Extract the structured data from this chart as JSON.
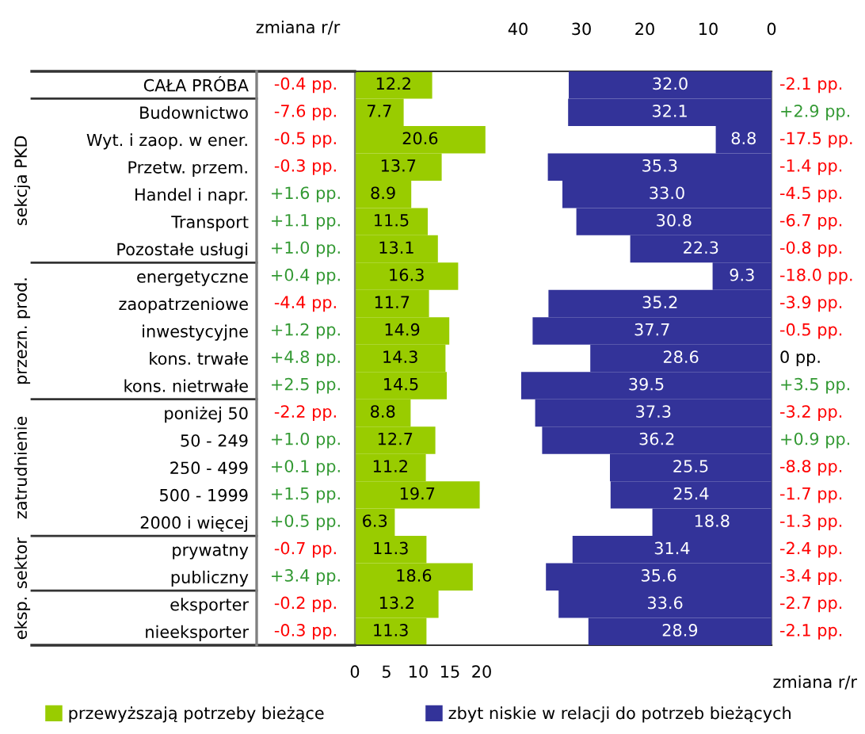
{
  "chart_data": [
    {
      "type": "bar",
      "orientation": "horizontal",
      "categories": [
        "CAŁA PRÓBA",
        "Budownictwo",
        "Wyt. i zaop. w ener.",
        "Przetw. przem.",
        "Handel i napr.",
        "Transport",
        "Pozostałe usługi",
        "energetyczne",
        "zaopatrzeniowe",
        "inwestycyjne",
        "kons. trwałe",
        "kons. nietrwałe",
        "poniżej 50",
        "50 - 249",
        "250 - 499",
        "500 - 1999",
        "2000 i więcej",
        "prywatny",
        "publiczny",
        "eksporter",
        "nieeksporter"
      ],
      "series": [
        {
          "name": "przewyższają potrzeby bieżące",
          "color": "#99cc00",
          "values": [
            12.2,
            7.7,
            20.6,
            13.7,
            8.9,
            11.5,
            13.1,
            16.3,
            11.7,
            14.9,
            14.3,
            14.5,
            8.8,
            12.7,
            11.2,
            19.7,
            6.3,
            11.3,
            18.6,
            13.2,
            11.3
          ]
        }
      ],
      "xlim": [
        0,
        65.75
      ],
      "xticks": [
        0,
        5,
        10,
        15,
        20
      ],
      "data_labels": true,
      "legend": "bottom left",
      "annotations": [
        "zmiana r/r",
        "sekcja PKD",
        "przezn. prod.",
        "zatrudnienie",
        "sektor",
        "eksp.",
        "-0.4 pp.",
        "-7.6 pp.",
        "-0.5 pp.",
        "-0.3 pp.",
        "+1.6 pp.",
        "+1.1 pp.",
        "+1.0 pp.",
        "+0.4 pp.",
        "-4.4 pp.",
        "+1.2 pp.",
        "+4.8 pp.",
        "+2.5 pp.",
        "-2.2 pp.",
        "+1.0 pp.",
        "+0.1 pp.",
        "+1.5 pp.",
        "+0.5 pp.",
        "-0.7 pp.",
        "+3.4 pp.",
        "-0.2 pp.",
        "-0.3 pp."
      ]
    },
    {
      "type": "bar",
      "orientation": "horizontal",
      "categories": [
        null,
        null,
        null,
        null,
        null,
        null,
        null,
        null,
        null,
        null,
        null,
        null,
        null,
        null,
        null,
        null,
        null,
        null,
        null,
        null,
        null
      ],
      "series": [
        {
          "name": "zbyt niskie w relacji do potrzeb bieżących",
          "color": "#333399",
          "values": [
            32.0,
            32.1,
            8.8,
            35.3,
            33.0,
            30.8,
            22.3,
            9.3,
            35.2,
            37.7,
            28.6,
            39.5,
            37.3,
            36.2,
            25.5,
            25.4,
            18.8,
            31.4,
            35.6,
            33.6,
            28.9
          ],
          "value_labels": [
            "32.0",
            "32.1",
            "8.8",
            "35.3",
            "33.0",
            "30.8",
            "22.3",
            "9.3",
            "35.2",
            "37.7",
            "28.6",
            "39.5",
            "37.3",
            "36.2",
            "25.5",
            "25.4",
            "18.8",
            "31.4",
            "35.6",
            "33.6",
            "28.9"
          ]
        }
      ],
      "xlim": [
        65.75,
        0
      ],
      "xticks": [
        40,
        30,
        20,
        10,
        0
      ],
      "legend": "bottom right",
      "tick_labels": "x",
      "annotations": [
        "zmiana r/r",
        "-2.1 pp.",
        "+2.9 pp.",
        "-17.5 pp.",
        "-1.4 pp.",
        "-4.5 pp.",
        "-6.7 pp.",
        "-0.8 pp.",
        "-18.0 pp.",
        "-3.9 pp.",
        "-0.5 pp.",
        "0 pp.",
        "+3.5 pp.",
        "-3.2 pp.",
        "+0.9 pp.",
        "-8.8 pp.",
        "-1.7 pp.",
        "-1.3 pp.",
        "-2.4 pp.",
        "-3.4 pp.",
        "-2.7 pp.",
        "-2.1 pp."
      ]
    }
  ]
}
